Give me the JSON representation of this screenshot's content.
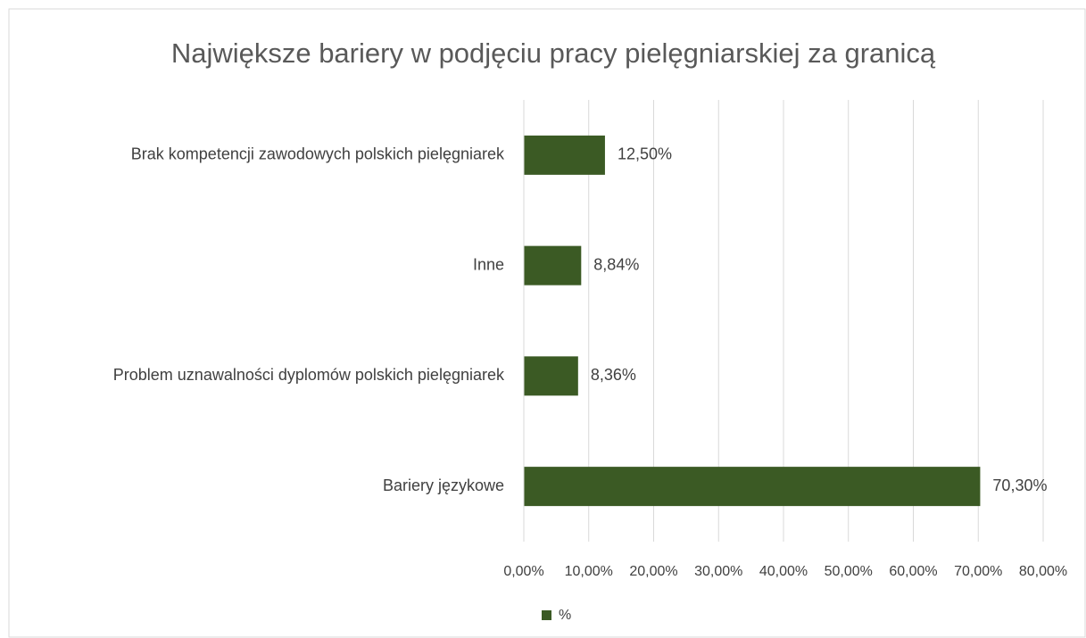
{
  "chart_data": {
    "type": "hbar",
    "title": "Największe bariery w podjęciu pracy pielęgniarskiej  za granicą",
    "categories": [
      "Brak kompetencji zawodowych polskich pielęgniarek",
      "Inne",
      "Problem uznawalności dyplomów polskich pielęgniarek",
      "Bariery językowe"
    ],
    "series": [
      {
        "name": "%",
        "color": "#3b5a24",
        "values": [
          12.5,
          8.84,
          8.36,
          70.3
        ],
        "value_labels": [
          "12,50%",
          "8,84%",
          "8,36%",
          "70,30%"
        ]
      }
    ],
    "xlim": [
      0,
      80
    ],
    "xticks": [
      {
        "value": 0,
        "label": "0,00%"
      },
      {
        "value": 10,
        "label": "10,00%"
      },
      {
        "value": 20,
        "label": "20,00%"
      },
      {
        "value": 30,
        "label": "30,00%"
      },
      {
        "value": 40,
        "label": "40,00%"
      },
      {
        "value": 50,
        "label": "50,00%"
      },
      {
        "value": 60,
        "label": "60,00%"
      },
      {
        "value": 70,
        "label": "70,00%"
      },
      {
        "value": 80,
        "label": "80,00%"
      }
    ],
    "grid": true,
    "legend": "bottom"
  }
}
